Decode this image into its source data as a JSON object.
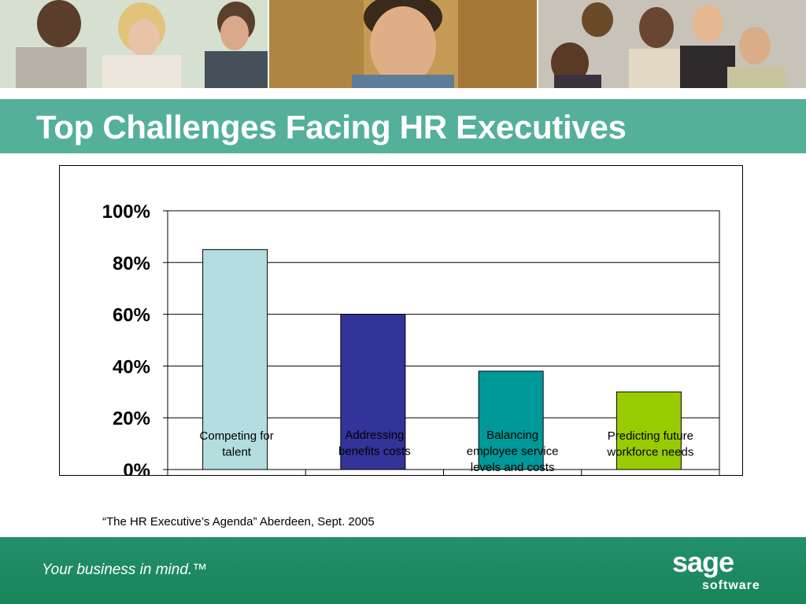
{
  "slide": {
    "title": "Top Challenges Facing HR Executives",
    "source_note": "“The HR Executive’s Agenda” Aberdeen, Sept. 2005"
  },
  "footer": {
    "tagline": "Your business in mind.™",
    "logo_word": "sage",
    "logo_sub": "software"
  },
  "colors": {
    "title_bar": "#55b09a",
    "footer": "#1c8c68"
  },
  "chart_data": {
    "type": "bar",
    "categories": [
      "Competing for talent",
      "Addressing benefits costs",
      "Balancing employee service levels and costs",
      "Predicting future workforce needs"
    ],
    "category_lines": [
      [
        "Competing for",
        "talent"
      ],
      [
        "Addressing",
        "benefits costs"
      ],
      [
        "Balancing",
        "employee service",
        "levels and costs"
      ],
      [
        "Predicting future",
        "workforce needs"
      ]
    ],
    "values": [
      85,
      60,
      38,
      30
    ],
    "bar_colors": [
      "#b4dde0",
      "#333399",
      "#009999",
      "#99cc00"
    ],
    "ylim": [
      0,
      100
    ],
    "yticks": [
      0,
      20,
      40,
      60,
      80,
      100
    ],
    "ytick_labels": [
      "0%",
      "20%",
      "40%",
      "60%",
      "80%",
      "100%"
    ],
    "grid": true,
    "title": "",
    "xlabel": "",
    "ylabel": ""
  }
}
